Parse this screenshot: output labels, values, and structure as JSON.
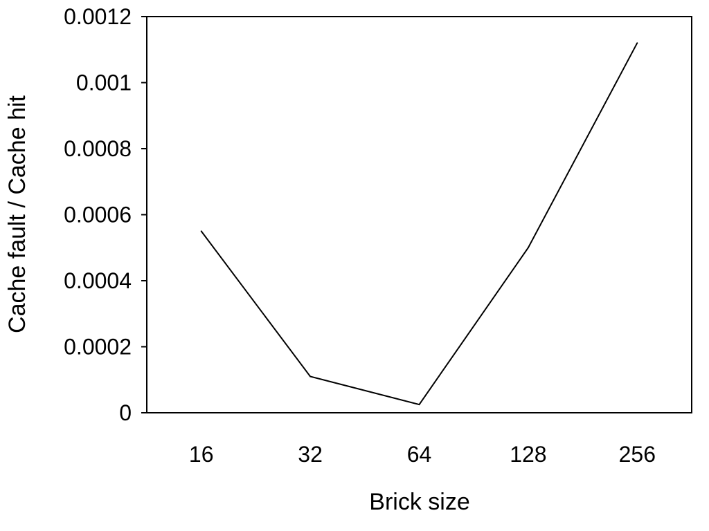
{
  "chart_data": {
    "type": "line",
    "title": "",
    "xlabel": "Brick size",
    "ylabel": "Cache fault / Cache hit",
    "categories": [
      "16",
      "32",
      "64",
      "128",
      "256"
    ],
    "series": [
      {
        "values": [
          0.00055,
          0.00011,
          2.5e-05,
          0.0005,
          0.00112
        ]
      }
    ],
    "ylim": [
      0,
      0.0012
    ],
    "yticks": [
      "0",
      "0.0002",
      "0.0004",
      "0.0006",
      "0.0008",
      "0.001",
      "0.0012"
    ],
    "ytick_values": [
      0,
      0.0002,
      0.0004,
      0.0006,
      0.0008,
      0.001,
      0.0012
    ],
    "grid": false,
    "legend": "none",
    "line_color": "#000000"
  }
}
